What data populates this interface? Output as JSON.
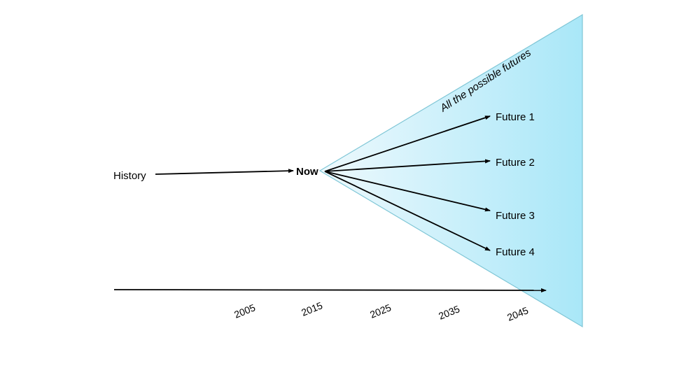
{
  "labels": {
    "history": "History",
    "now": "Now",
    "cone": "All the possible futures",
    "futures": [
      "Future 1",
      "Future 2",
      "Future 3",
      "Future 4"
    ]
  },
  "timeline": {
    "years": [
      "2005",
      "2015",
      "2025",
      "2035",
      "2045"
    ]
  },
  "colors": {
    "cone_fill_start": "#eef9fd",
    "cone_fill_end": "#a9e7f8",
    "cone_stroke": "#7fc6d6",
    "arrow": "#000000"
  }
}
